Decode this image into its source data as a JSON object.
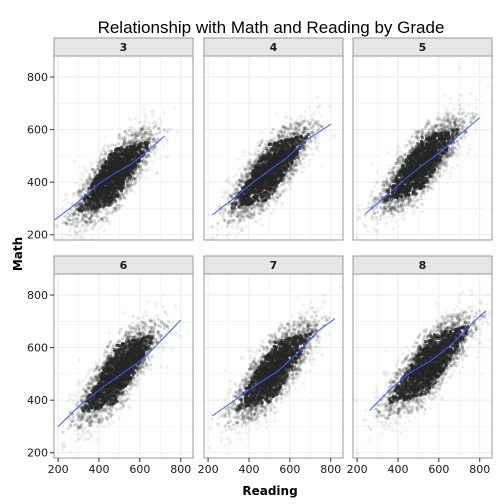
{
  "chart_data": {
    "type": "scatter",
    "title": "Relationship with Math and Reading by Grade",
    "xlabel": "Reading",
    "ylabel": "Math",
    "xlim": [
      180,
      860
    ],
    "ylim": [
      180,
      880
    ],
    "x_ticks": [
      200,
      400,
      600,
      800
    ],
    "y_ticks": [
      200,
      400,
      600,
      800
    ],
    "grid": true,
    "panel_labels": [
      "3",
      "4",
      "5",
      "6",
      "7",
      "8"
    ],
    "panels": [
      {
        "label": "3",
        "cloud": {
          "x_center": 470,
          "y_center": 420,
          "x_sd": 95,
          "y_sd": 88,
          "correlation": 0.78
        },
        "smooth": {
          "x": [
            180,
            300,
            400,
            480,
            560,
            640,
            720
          ],
          "y": [
            255,
            325,
            395,
            435,
            470,
            520,
            575
          ]
        }
      },
      {
        "label": "4",
        "cloud": {
          "x_center": 500,
          "y_center": 440,
          "x_sd": 100,
          "y_sd": 90,
          "correlation": 0.8
        },
        "smooth": {
          "x": [
            220,
            320,
            420,
            500,
            580,
            680,
            800
          ],
          "y": [
            275,
            335,
            400,
            445,
            490,
            560,
            620
          ]
        }
      },
      {
        "label": "5",
        "cloud": {
          "x_center": 510,
          "y_center": 465,
          "x_sd": 100,
          "y_sd": 90,
          "correlation": 0.8
        },
        "smooth": {
          "x": [
            240,
            340,
            440,
            520,
            600,
            700,
            800
          ],
          "y": [
            280,
            345,
            415,
            465,
            510,
            580,
            645
          ]
        }
      },
      {
        "label": "6",
        "cloud": {
          "x_center": 490,
          "y_center": 500,
          "x_sd": 95,
          "y_sd": 95,
          "correlation": 0.8
        },
        "smooth": {
          "x": [
            200,
            320,
            420,
            520,
            620,
            720,
            800
          ],
          "y": [
            300,
            390,
            450,
            505,
            560,
            640,
            705
          ]
        }
      },
      {
        "label": "7",
        "cloud": {
          "x_center": 520,
          "y_center": 510,
          "x_sd": 100,
          "y_sd": 95,
          "correlation": 0.8
        },
        "smooth": {
          "x": [
            220,
            340,
            440,
            540,
            640,
            740,
            820
          ],
          "y": [
            340,
            405,
            460,
            510,
            580,
            665,
            710
          ]
        }
      },
      {
        "label": "8",
        "cloud": {
          "x_center": 550,
          "y_center": 535,
          "x_sd": 105,
          "y_sd": 95,
          "correlation": 0.8
        },
        "smooth": {
          "x": [
            260,
            360,
            460,
            560,
            660,
            760,
            830
          ],
          "y": [
            360,
            440,
            505,
            550,
            610,
            690,
            740
          ]
        }
      }
    ],
    "colors": {
      "points": "#262626",
      "smooth_line": "#3366FF",
      "strip_fill": "#e6e6e6",
      "grid": "#ebebeb",
      "panel_border": "#999999"
    }
  }
}
